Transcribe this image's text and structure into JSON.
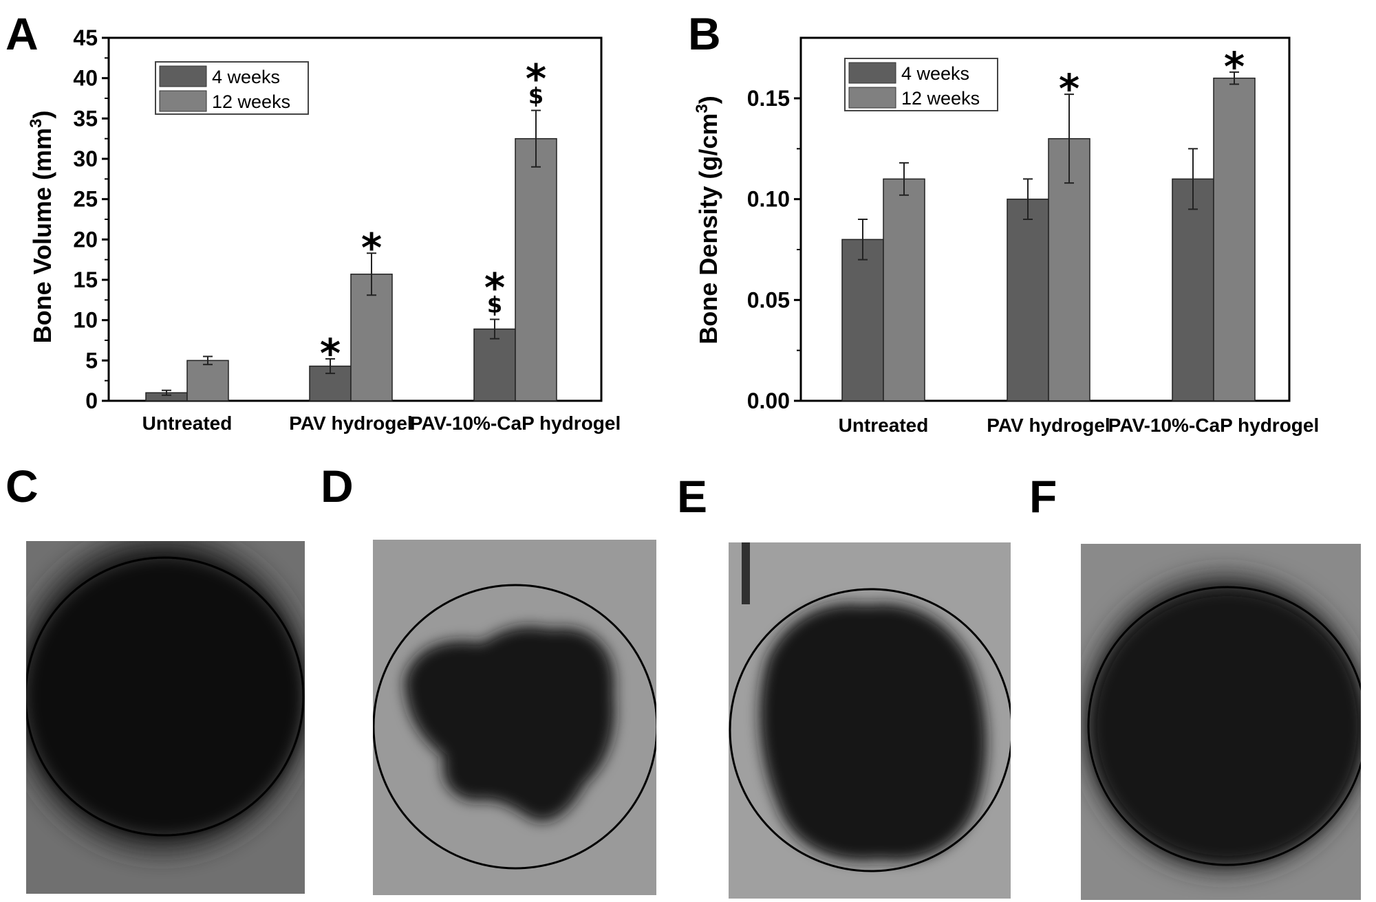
{
  "panels": {
    "A": "A",
    "B": "B",
    "C": "C",
    "D": "D",
    "E": "E",
    "F": "F"
  },
  "chart_data": [
    {
      "id": "A",
      "type": "bar",
      "ylabel_main": "Bone Volume (mm",
      "ylabel_sup": "3",
      "ylabel_end": ")",
      "ylim": [
        0,
        45
      ],
      "yticks": [
        0,
        5,
        10,
        15,
        20,
        25,
        30,
        35,
        40,
        45
      ],
      "ytick_labels": [
        "0",
        "5",
        "10",
        "15",
        "20",
        "25",
        "30",
        "35",
        "40",
        "45"
      ],
      "categories": [
        "Untreated",
        "PAV hydrogel",
        "PAV-10%-CaP hydrogel"
      ],
      "series": [
        {
          "name": "4 weeks",
          "color": "#5e5e5e",
          "values": [
            1.0,
            4.3,
            8.9
          ],
          "errors": [
            0.3,
            0.9,
            1.2
          ]
        },
        {
          "name": "12 weeks",
          "color": "#808080",
          "values": [
            5.0,
            15.7,
            32.5
          ],
          "errors": [
            0.5,
            2.6,
            3.5
          ]
        }
      ],
      "annotations": [
        {
          "series": 0,
          "category": 1,
          "marks": [
            "*"
          ]
        },
        {
          "series": 1,
          "category": 1,
          "marks": [
            "*"
          ]
        },
        {
          "series": 0,
          "category": 2,
          "marks": [
            "*",
            "$"
          ]
        },
        {
          "series": 1,
          "category": 2,
          "marks": [
            "*",
            "$"
          ]
        }
      ],
      "legend_position": "top-left"
    },
    {
      "id": "B",
      "type": "bar",
      "ylabel_main": "Bone Density (g/cm",
      "ylabel_sup": "3",
      "ylabel_end": ")",
      "ylim": [
        0,
        0.18
      ],
      "yticks": [
        0,
        0.05,
        0.1,
        0.15
      ],
      "ytick_labels": [
        "0.00",
        "0.05",
        "0.10",
        "0.15"
      ],
      "categories": [
        "Untreated",
        "PAV hydrogel",
        "PAV-10%-CaP hydrogel"
      ],
      "series": [
        {
          "name": "4 weeks",
          "color": "#5e5e5e",
          "values": [
            0.08,
            0.1,
            0.11
          ],
          "errors": [
            0.01,
            0.01,
            0.015
          ]
        },
        {
          "name": "12 weeks",
          "color": "#808080",
          "values": [
            0.11,
            0.13,
            0.16
          ],
          "errors": [
            0.008,
            0.022,
            0.003
          ]
        }
      ],
      "annotations": [
        {
          "series": 1,
          "category": 1,
          "marks": [
            "*"
          ]
        },
        {
          "series": 1,
          "category": 2,
          "marks": [
            "*"
          ]
        }
      ],
      "legend_position": "top-left"
    }
  ],
  "images": {
    "C": {
      "background": "#707070",
      "blob": "#111111"
    },
    "D": {
      "background": "#9a9a9a",
      "blob": "#151515"
    },
    "E": {
      "background": "#a0a0a0",
      "blob": "#141414"
    },
    "F": {
      "background": "#8a8a8a",
      "blob": "#121212"
    }
  }
}
